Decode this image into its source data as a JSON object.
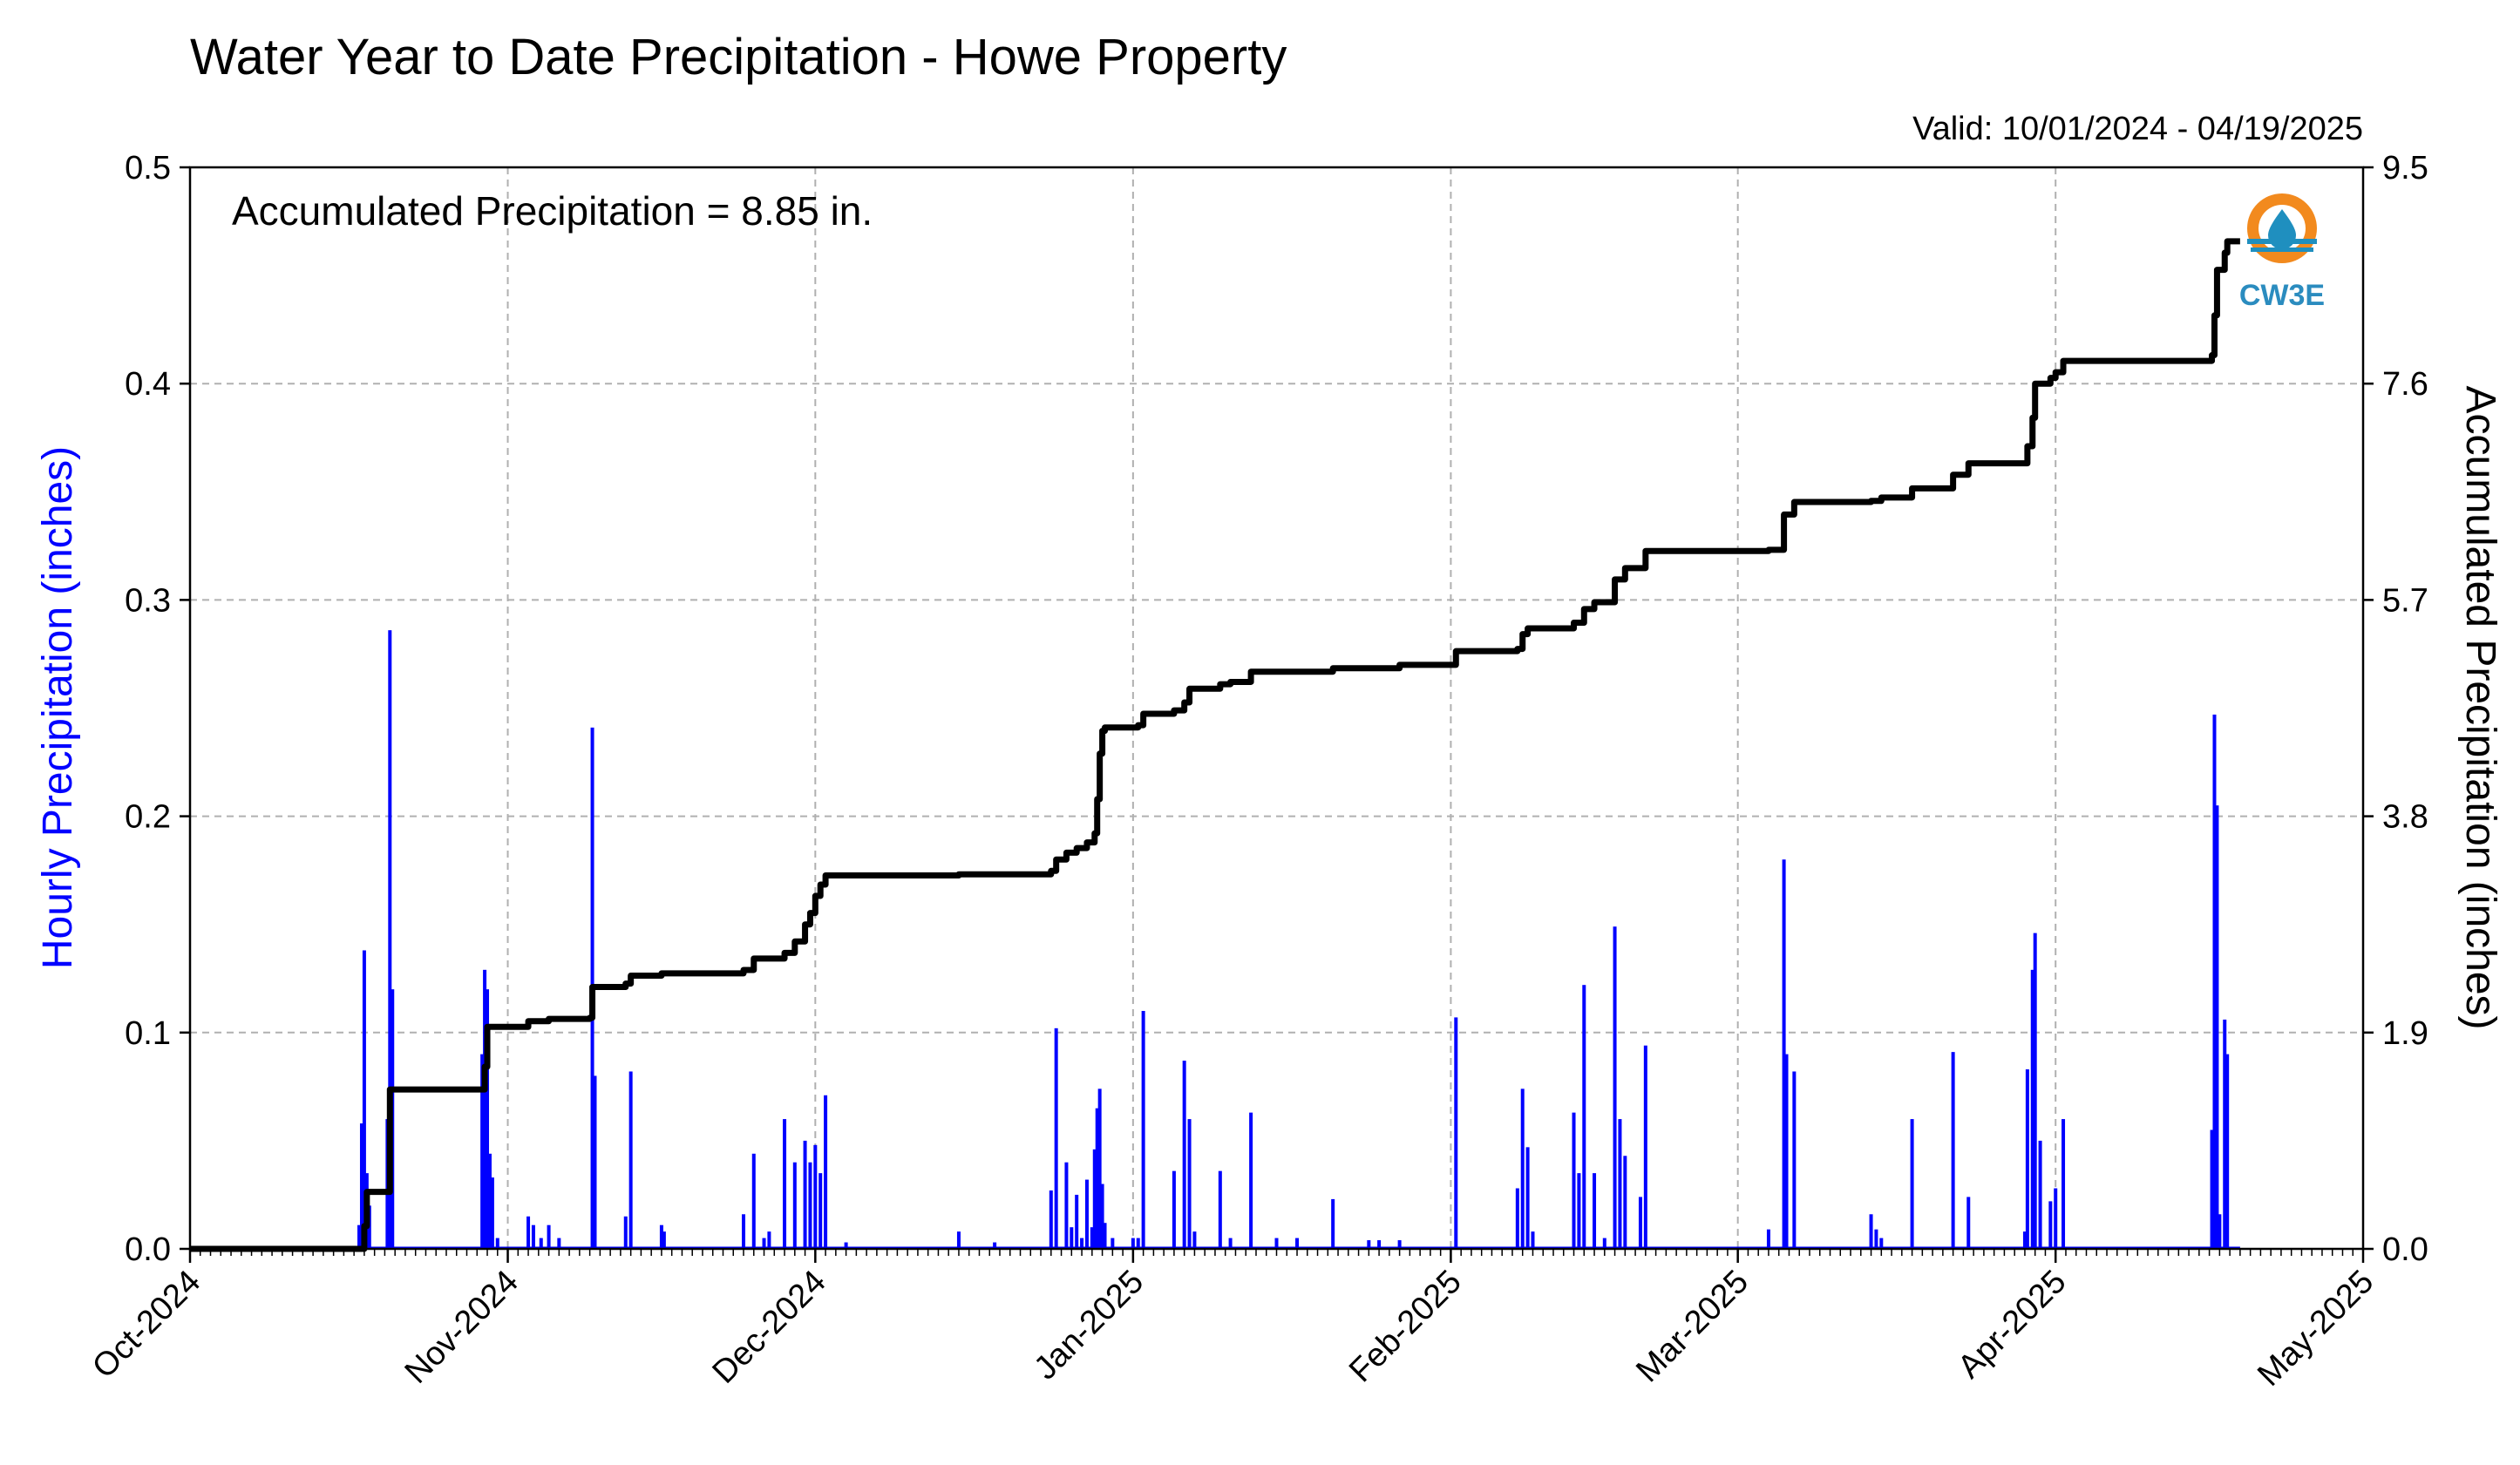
{
  "header": {
    "title": "Water Year to Date Precipitation - Howe Property",
    "valid": "Valid: 10/01/2024 - 04/19/2025"
  },
  "annotation": "Accumulated Precipitation = 8.85 in.",
  "logo": {
    "text": "CW3E",
    "icon": "cw3e-water-drop-logo"
  },
  "chart_data": {
    "type": "bar",
    "subtype": "bar-with-line-dual-axis",
    "title": "Water Year to Date Precipitation - Howe Property",
    "xlabel": "",
    "ylabel": "Hourly Precipitation (inches)",
    "y2label": "Accumulated Precipitation (inches)",
    "xlim": [
      "2024-10-01",
      "2025-05-01"
    ],
    "ylim": [
      0,
      0.5
    ],
    "y2lim": [
      0,
      9.5
    ],
    "grid": true,
    "x_tick_labels": [
      "Oct-2024",
      "Nov-2024",
      "Dec-2024",
      "Jan-2025",
      "Feb-2025",
      "Mar-2025",
      "Apr-2025",
      "May-2025"
    ],
    "x_tick_dates": [
      "2024-10-01",
      "2024-11-01",
      "2024-12-01",
      "2025-01-01",
      "2025-02-01",
      "2025-03-01",
      "2025-04-01",
      "2025-05-01"
    ],
    "y_ticks": [
      "0.0",
      "0.1",
      "0.2",
      "0.3",
      "0.4",
      "0.5"
    ],
    "y2_ticks": [
      "0.0",
      "1.9",
      "3.8",
      "5.7",
      "7.6",
      "9.5"
    ],
    "colors": {
      "hourly": "#0000ff",
      "accumulated": "#000000",
      "grid": "#b0b0b0"
    },
    "series": [
      {
        "name": "Hourly Precipitation (inches)",
        "axis": "left",
        "type": "bar",
        "points": [
          [
            "2024-10-17 12:00",
            0.011
          ],
          [
            "2024-10-17 18:00",
            0.058
          ],
          [
            "2024-10-18 00:00",
            0.138
          ],
          [
            "2024-10-18 06:00",
            0.035
          ],
          [
            "2024-10-18 12:00",
            0.02
          ],
          [
            "2024-10-20 06:00",
            0.06
          ],
          [
            "2024-10-20 12:00",
            0.286
          ],
          [
            "2024-10-20 18:00",
            0.12
          ],
          [
            "2024-10-29 12:00",
            0.09
          ],
          [
            "2024-10-29 18:00",
            0.129
          ],
          [
            "2024-10-30 00:00",
            0.12
          ],
          [
            "2024-10-30 06:00",
            0.044
          ],
          [
            "2024-10-30 12:00",
            0.033
          ],
          [
            "2024-10-31 00:00",
            0.005
          ],
          [
            "2024-11-03 00:00",
            0.015
          ],
          [
            "2024-11-03 12:00",
            0.011
          ],
          [
            "2024-11-04 06:00",
            0.005
          ],
          [
            "2024-11-05 00:00",
            0.011
          ],
          [
            "2024-11-06 00:00",
            0.005
          ],
          [
            "2024-11-09 06:00",
            0.241
          ],
          [
            "2024-11-09 12:00",
            0.08
          ],
          [
            "2024-11-12 12:00",
            0.015
          ],
          [
            "2024-11-13 00:00",
            0.082
          ],
          [
            "2024-11-16 00:00",
            0.011
          ],
          [
            "2024-11-16 06:00",
            0.008
          ],
          [
            "2024-11-24 00:00",
            0.016
          ],
          [
            "2024-11-25 00:00",
            0.044
          ],
          [
            "2024-11-26 00:00",
            0.005
          ],
          [
            "2024-11-26 12:00",
            0.008
          ],
          [
            "2024-11-28 00:00",
            0.06
          ],
          [
            "2024-11-29 00:00",
            0.04
          ],
          [
            "2024-11-30 00:00",
            0.05
          ],
          [
            "2024-11-30 12:00",
            0.04
          ],
          [
            "2024-12-01 00:00",
            0.048
          ],
          [
            "2024-12-01 12:00",
            0.035
          ],
          [
            "2024-12-02 00:00",
            0.071
          ],
          [
            "2024-12-04 00:00",
            0.003
          ],
          [
            "2024-12-15 00:00",
            0.008
          ],
          [
            "2024-12-18 12:00",
            0.003
          ],
          [
            "2024-12-24 00:00",
            0.027
          ],
          [
            "2024-12-24 12:00",
            0.102
          ],
          [
            "2024-12-25 12:00",
            0.04
          ],
          [
            "2024-12-26 00:00",
            0.01
          ],
          [
            "2024-12-26 12:00",
            0.025
          ],
          [
            "2024-12-27 00:00",
            0.005
          ],
          [
            "2024-12-27 12:00",
            0.032
          ],
          [
            "2024-12-28 00:00",
            0.01
          ],
          [
            "2024-12-28 06:00",
            0.046
          ],
          [
            "2024-12-28 12:00",
            0.065
          ],
          [
            "2024-12-28 18:00",
            0.074
          ],
          [
            "2024-12-29 00:00",
            0.03
          ],
          [
            "2024-12-29 06:00",
            0.012
          ],
          [
            "2024-12-30 00:00",
            0.005
          ],
          [
            "2025-01-01 00:00",
            0.005
          ],
          [
            "2025-01-01 12:00",
            0.005
          ],
          [
            "2025-01-02 00:00",
            0.11
          ],
          [
            "2025-01-05 00:00",
            0.036
          ],
          [
            "2025-01-06 00:00",
            0.087
          ],
          [
            "2025-01-06 12:00",
            0.06
          ],
          [
            "2025-01-07 00:00",
            0.008
          ],
          [
            "2025-01-09 12:00",
            0.036
          ],
          [
            "2025-01-10 12:00",
            0.005
          ],
          [
            "2025-01-12 12:00",
            0.063
          ],
          [
            "2025-01-15 00:00",
            0.005
          ],
          [
            "2025-01-17 00:00",
            0.005
          ],
          [
            "2025-01-20 12:00",
            0.023
          ],
          [
            "2025-01-24 00:00",
            0.004
          ],
          [
            "2025-01-25 00:00",
            0.004
          ],
          [
            "2025-01-27 00:00",
            0.004
          ],
          [
            "2025-02-01 12:00",
            0.107
          ],
          [
            "2025-02-07 12:00",
            0.028
          ],
          [
            "2025-02-08 00:00",
            0.074
          ],
          [
            "2025-02-08 12:00",
            0.047
          ],
          [
            "2025-02-09 00:00",
            0.008
          ],
          [
            "2025-02-13 00:00",
            0.063
          ],
          [
            "2025-02-13 12:00",
            0.035
          ],
          [
            "2025-02-14 00:00",
            0.122
          ],
          [
            "2025-02-15 00:00",
            0.035
          ],
          [
            "2025-02-16 00:00",
            0.005
          ],
          [
            "2025-02-17 00:00",
            0.149
          ],
          [
            "2025-02-17 12:00",
            0.06
          ],
          [
            "2025-02-18 00:00",
            0.043
          ],
          [
            "2025-02-19 12:00",
            0.024
          ],
          [
            "2025-02-20 00:00",
            0.094
          ],
          [
            "2025-03-04 00:00",
            0.009
          ],
          [
            "2025-03-05 12:00",
            0.18
          ],
          [
            "2025-03-05 18:00",
            0.09
          ],
          [
            "2025-03-06 12:00",
            0.082
          ],
          [
            "2025-03-14 00:00",
            0.016
          ],
          [
            "2025-03-14 12:00",
            0.009
          ],
          [
            "2025-03-15 00:00",
            0.005
          ],
          [
            "2025-03-18 00:00",
            0.06
          ],
          [
            "2025-03-22 00:00",
            0.091
          ],
          [
            "2025-03-23 12:00",
            0.024
          ],
          [
            "2025-03-29 00:00",
            0.008
          ],
          [
            "2025-03-29 06:00",
            0.083
          ],
          [
            "2025-03-29 18:00",
            0.129
          ],
          [
            "2025-03-30 00:00",
            0.146
          ],
          [
            "2025-03-30 12:00",
            0.05
          ],
          [
            "2025-03-31 12:00",
            0.022
          ],
          [
            "2025-04-01 00:00",
            0.028
          ],
          [
            "2025-04-01 18:00",
            0.06
          ],
          [
            "2025-04-16 06:00",
            0.055
          ],
          [
            "2025-04-16 12:00",
            0.247
          ],
          [
            "2025-04-16 18:00",
            0.205
          ],
          [
            "2025-04-17 00:00",
            0.016
          ],
          [
            "2025-04-17 12:00",
            0.106
          ],
          [
            "2025-04-17 18:00",
            0.09
          ]
        ]
      },
      {
        "name": "Accumulated Precipitation (inches)",
        "axis": "right",
        "type": "line",
        "points": [
          [
            "2024-10-01 00:00",
            0.0
          ],
          [
            "2024-10-17 12:00",
            0.0
          ],
          [
            "2024-10-18 00:00",
            0.2
          ],
          [
            "2024-10-18 06:00",
            0.5
          ],
          [
            "2024-10-20 06:00",
            0.5
          ],
          [
            "2024-10-20 12:00",
            1.4
          ],
          [
            "2024-10-29 12:00",
            1.4
          ],
          [
            "2024-10-29 18:00",
            1.6
          ],
          [
            "2024-10-30 00:00",
            1.95
          ],
          [
            "2024-11-02 12:00",
            1.95
          ],
          [
            "2024-11-03 00:00",
            2.0
          ],
          [
            "2024-11-05 00:00",
            2.02
          ],
          [
            "2024-11-09 00:00",
            2.03
          ],
          [
            "2024-11-09 06:00",
            2.3
          ],
          [
            "2024-11-12 12:00",
            2.33
          ],
          [
            "2024-11-13 00:00",
            2.4
          ],
          [
            "2024-11-16 00:00",
            2.42
          ],
          [
            "2024-11-24 00:00",
            2.45
          ],
          [
            "2024-11-25 00:00",
            2.55
          ],
          [
            "2024-11-28 00:00",
            2.6
          ],
          [
            "2024-11-29 00:00",
            2.7
          ],
          [
            "2024-11-30 00:00",
            2.85
          ],
          [
            "2024-11-30 12:00",
            2.95
          ],
          [
            "2024-12-01 00:00",
            3.1
          ],
          [
            "2024-12-01 12:00",
            3.2
          ],
          [
            "2024-12-02 00:00",
            3.28
          ],
          [
            "2024-12-15 00:00",
            3.29
          ],
          [
            "2024-12-24 00:00",
            3.32
          ],
          [
            "2024-12-24 12:00",
            3.42
          ],
          [
            "2024-12-25 12:00",
            3.48
          ],
          [
            "2024-12-26 12:00",
            3.52
          ],
          [
            "2024-12-27 12:00",
            3.57
          ],
          [
            "2024-12-28 06:00",
            3.65
          ],
          [
            "2024-12-28 12:00",
            3.95
          ],
          [
            "2024-12-28 18:00",
            4.35
          ],
          [
            "2024-12-29 00:00",
            4.55
          ],
          [
            "2024-12-29 06:00",
            4.58
          ],
          [
            "2025-01-01 12:00",
            4.6
          ],
          [
            "2025-01-02 00:00",
            4.7
          ],
          [
            "2025-01-05 00:00",
            4.73
          ],
          [
            "2025-01-06 00:00",
            4.8
          ],
          [
            "2025-01-06 12:00",
            4.92
          ],
          [
            "2025-01-09 12:00",
            4.96
          ],
          [
            "2025-01-10 12:00",
            4.98
          ],
          [
            "2025-01-12 12:00",
            5.07
          ],
          [
            "2025-01-20 12:00",
            5.1
          ],
          [
            "2025-01-27 00:00",
            5.13
          ],
          [
            "2025-02-01 12:00",
            5.25
          ],
          [
            "2025-02-07 12:00",
            5.27
          ],
          [
            "2025-02-08 00:00",
            5.4
          ],
          [
            "2025-02-08 12:00",
            5.45
          ],
          [
            "2025-02-13 00:00",
            5.5
          ],
          [
            "2025-02-14 00:00",
            5.62
          ],
          [
            "2025-02-15 00:00",
            5.68
          ],
          [
            "2025-02-17 00:00",
            5.88
          ],
          [
            "2025-02-18 00:00",
            5.98
          ],
          [
            "2025-02-20 00:00",
            6.13
          ],
          [
            "2025-03-04 00:00",
            6.14
          ],
          [
            "2025-03-05 12:00",
            6.45
          ],
          [
            "2025-03-06 12:00",
            6.56
          ],
          [
            "2025-03-14 00:00",
            6.57
          ],
          [
            "2025-03-15 00:00",
            6.6
          ],
          [
            "2025-03-18 00:00",
            6.68
          ],
          [
            "2025-03-22 00:00",
            6.8
          ],
          [
            "2025-03-23 12:00",
            6.9
          ],
          [
            "2025-03-29 06:00",
            7.05
          ],
          [
            "2025-03-29 18:00",
            7.3
          ],
          [
            "2025-03-30 00:00",
            7.6
          ],
          [
            "2025-03-31 12:00",
            7.65
          ],
          [
            "2025-04-01 00:00",
            7.7
          ],
          [
            "2025-04-01 18:00",
            7.8
          ],
          [
            "2025-04-16 06:00",
            7.85
          ],
          [
            "2025-04-16 12:00",
            8.2
          ],
          [
            "2025-04-16 18:00",
            8.6
          ],
          [
            "2025-04-17 12:00",
            8.75
          ],
          [
            "2025-04-17 18:00",
            8.85
          ],
          [
            "2025-04-19 00:00",
            8.85
          ]
        ]
      }
    ]
  }
}
